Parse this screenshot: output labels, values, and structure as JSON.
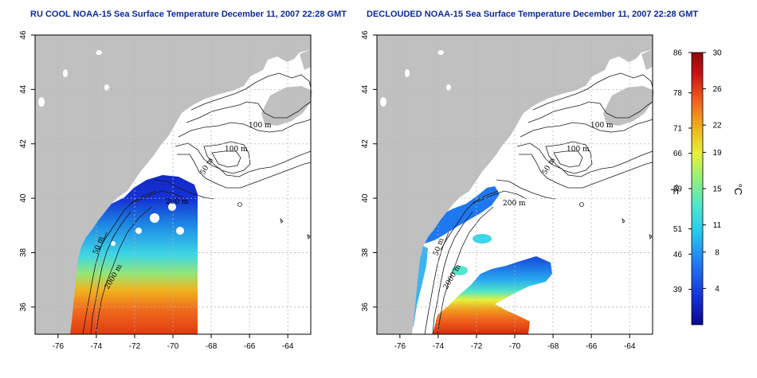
{
  "panels": [
    {
      "title": "RU COOL NOAA-15 Sea Surface Temperature December 11, 2007 22:28 GMT",
      "contours": [
        "100 m",
        "100 m",
        "50 m",
        "200 m",
        "50 m",
        "2000 m"
      ]
    },
    {
      "title": "DECLOUDED NOAA-15 Sea Surface Temperature December 11, 2007 22:28 GMT",
      "contours": [
        "100 m",
        "100 m",
        "50 m",
        "200 m",
        "50 m",
        "2000 m"
      ]
    }
  ],
  "axes": {
    "x_ticks": [
      "-76",
      "-74",
      "-72",
      "-70",
      "-68",
      "-66",
      "-64"
    ],
    "y_ticks": [
      "36",
      "38",
      "40",
      "42",
      "44",
      "46"
    ],
    "lon_range": [
      -77.2,
      -62.8
    ],
    "lat_range": [
      35,
      46
    ]
  },
  "colorbar": {
    "fahrenheit_ticks": [
      "86",
      "78",
      "71",
      "66",
      "59",
      "51",
      "46",
      "39"
    ],
    "celsius_ticks": [
      "30",
      "26",
      "22",
      "19",
      "15",
      "11",
      "8",
      "4"
    ],
    "fahrenheit_label": "°F",
    "celsius_label": "°C",
    "celsius_range": [
      0,
      30
    ],
    "colors": [
      "#0a0a8c",
      "#1430d8",
      "#1e78f0",
      "#28c8f0",
      "#50e6c8",
      "#96f078",
      "#e6f03c",
      "#f0b41e",
      "#f0641e",
      "#c81414",
      "#8c0a0a"
    ]
  },
  "colors": {
    "land": "#c0c0c0",
    "title": "#0b2a9c",
    "grid": "#b4b4b4"
  }
}
